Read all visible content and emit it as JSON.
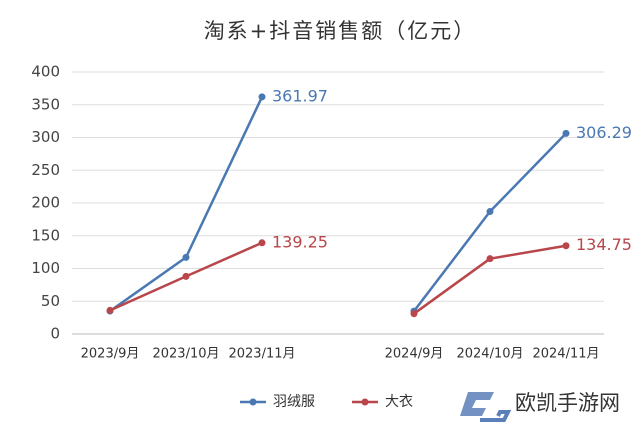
{
  "chart_data": {
    "type": "line",
    "title": "淘系+抖音销售额（亿元）",
    "categories": [
      "2023/9月",
      "2023/10月",
      "2023/11月",
      null,
      "2024/9月",
      "2024/10月",
      "2024/11月"
    ],
    "series": [
      {
        "name": "羽绒服",
        "color": "#4a78b3",
        "values": [
          35,
          117,
          361.97,
          null,
          35,
          187,
          306.29
        ]
      },
      {
        "name": "大衣",
        "color": "#b8464a",
        "values": [
          36,
          88,
          139.25,
          null,
          31,
          115,
          134.75
        ]
      }
    ],
    "ylim": [
      0,
      400
    ],
    "yticks": [
      0,
      50,
      100,
      150,
      200,
      250,
      300,
      350,
      400
    ],
    "grid": true,
    "legend": "bottom",
    "data_labels": "segment-end"
  },
  "watermark": "欧凯手游网"
}
